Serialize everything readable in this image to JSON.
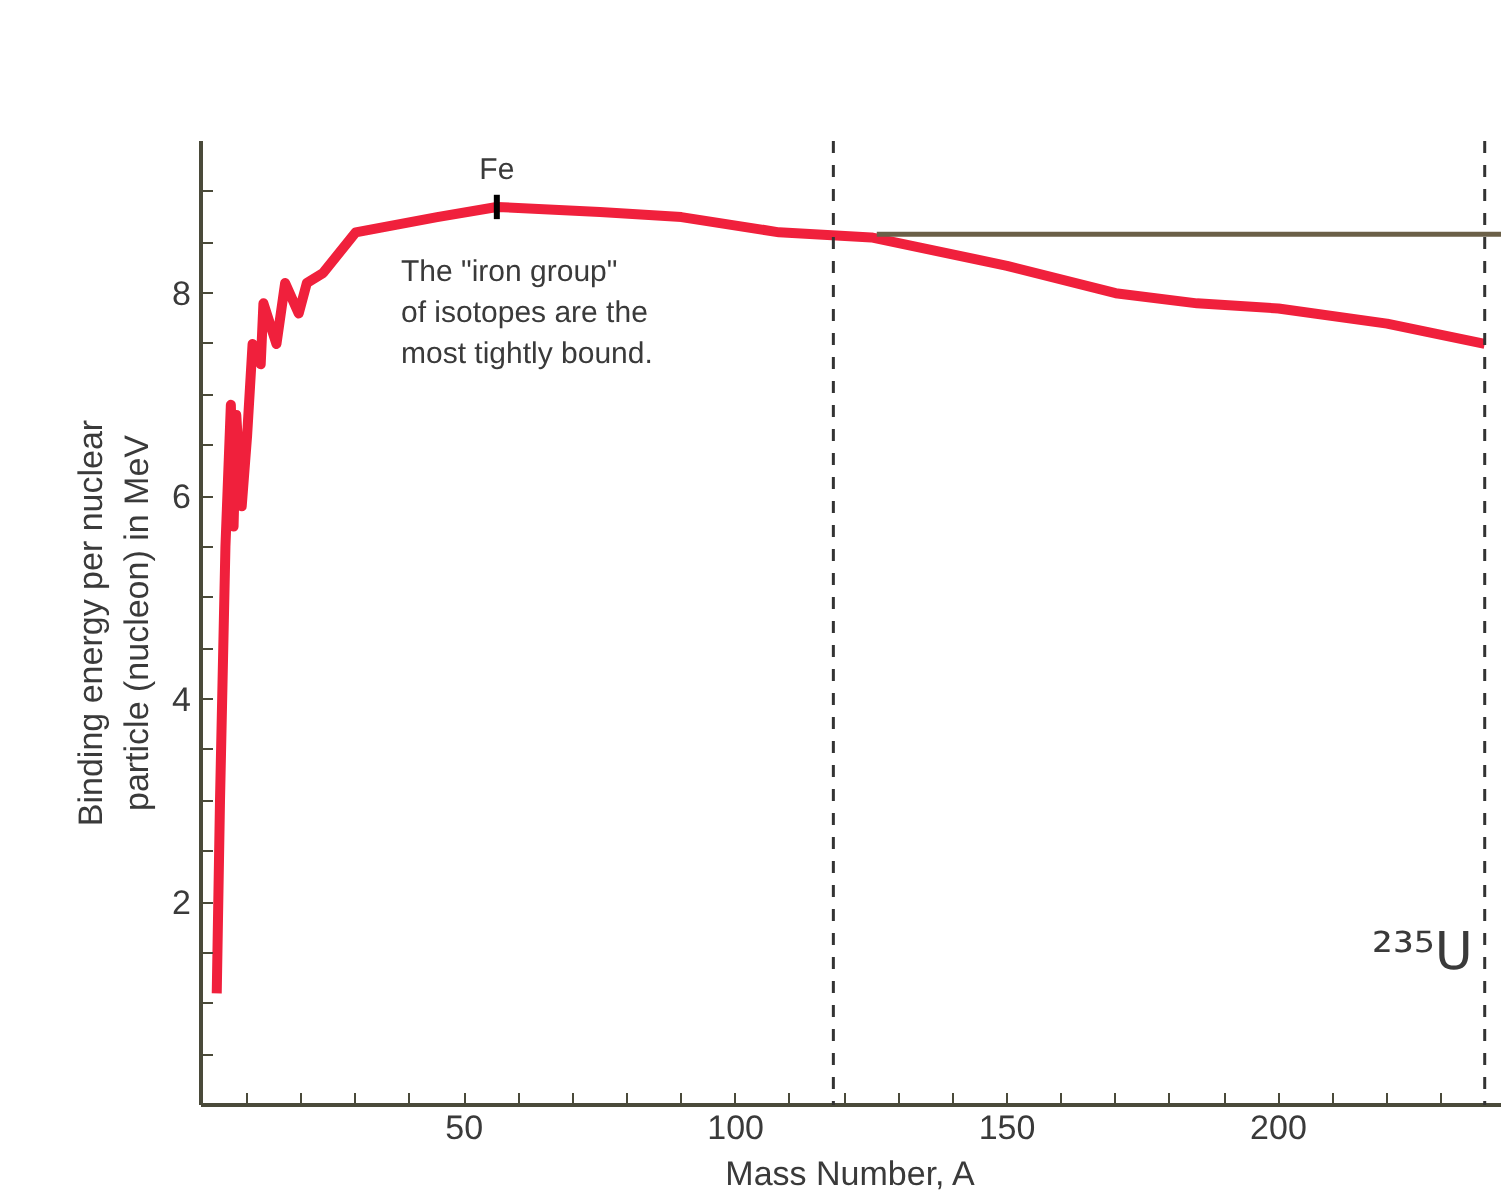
{
  "chart_data": {
    "type": "line",
    "xlabel": "Mass Number, A",
    "ylabel": "Binding energy per nuclear\nparticle (nucleon) in MeV",
    "xlim": [
      1.5,
      241
    ],
    "ylim": [
      0,
      9.5
    ],
    "xticks": [
      {
        "value": 10,
        "label": null
      },
      {
        "value": 20,
        "label": null
      },
      {
        "value": 30,
        "label": null
      },
      {
        "value": 40,
        "label": null
      },
      50,
      {
        "value": 60,
        "label": null
      },
      {
        "value": 70,
        "label": null
      },
      {
        "value": 80,
        "label": null
      },
      {
        "value": 90,
        "label": null
      },
      100,
      {
        "value": 110,
        "label": null
      },
      {
        "value": 120,
        "label": null
      },
      {
        "value": 130,
        "label": null
      },
      {
        "value": 140,
        "label": null
      },
      150,
      {
        "value": 160,
        "label": null
      },
      {
        "value": 170,
        "label": null
      },
      {
        "value": 180,
        "label": null
      },
      {
        "value": 190,
        "label": null
      },
      200,
      {
        "value": 210,
        "label": null
      },
      {
        "value": 220,
        "label": null
      },
      {
        "value": 230,
        "label": null
      }
    ],
    "yticks": [
      {
        "value": 0.5,
        "label": null
      },
      {
        "value": 1,
        "label": null
      },
      {
        "value": 1.5,
        "label": null
      },
      2,
      {
        "value": 2.5,
        "label": null
      },
      {
        "value": 3,
        "label": null
      },
      {
        "value": 3.5,
        "label": null
      },
      4,
      {
        "value": 4.5,
        "label": null
      },
      {
        "value": 5,
        "label": null
      },
      {
        "value": 5.5,
        "label": null
      },
      6,
      {
        "value": 6.5,
        "label": null
      },
      {
        "value": 7,
        "label": null
      },
      {
        "value": 7.5,
        "label": null
      },
      8,
      {
        "value": 8.5,
        "label": null
      },
      {
        "value": 9,
        "label": null
      }
    ],
    "grid": false,
    "marker": "none",
    "line_style": "solid",
    "series": [
      {
        "color": "#f0203c",
        "x": [
          4.4,
          5,
          6,
          7,
          7.5,
          8,
          9,
          10,
          11,
          12.5,
          13,
          15.4,
          17,
          19.5,
          21,
          24,
          30,
          45,
          56,
          75,
          90,
          108,
          125,
          150,
          170,
          185,
          200,
          220,
          238
        ],
        "values": [
          1.1,
          3.0,
          5.5,
          6.9,
          5.7,
          6.8,
          5.9,
          6.6,
          7.5,
          7.3,
          7.9,
          7.5,
          8.1,
          7.8,
          8.1,
          8.2,
          8.6,
          8.75,
          8.85,
          8.8,
          8.75,
          8.6,
          8.55,
          8.27,
          8.0,
          7.9,
          7.85,
          7.7,
          7.5
        ]
      },
      {
        "color": "#6b6048",
        "x": [
          126,
          241
        ],
        "values": [
          8.58,
          8.58
        ]
      }
    ],
    "ref_lines": [
      {
        "axis": "x",
        "value": 118,
        "line_style": "dashed",
        "color": "#333333"
      },
      {
        "axis": "x",
        "value": 238,
        "line_style": "dashed",
        "color": "#333333"
      }
    ],
    "annotations": [
      {
        "text": "Fe",
        "x": 56,
        "y": 8.85
      },
      "The \"iron group\"\nof isotopes are the\nmost tightly bound.",
      {
        "text": "²³⁵U",
        "x": 238,
        "y": 1.2
      }
    ]
  }
}
